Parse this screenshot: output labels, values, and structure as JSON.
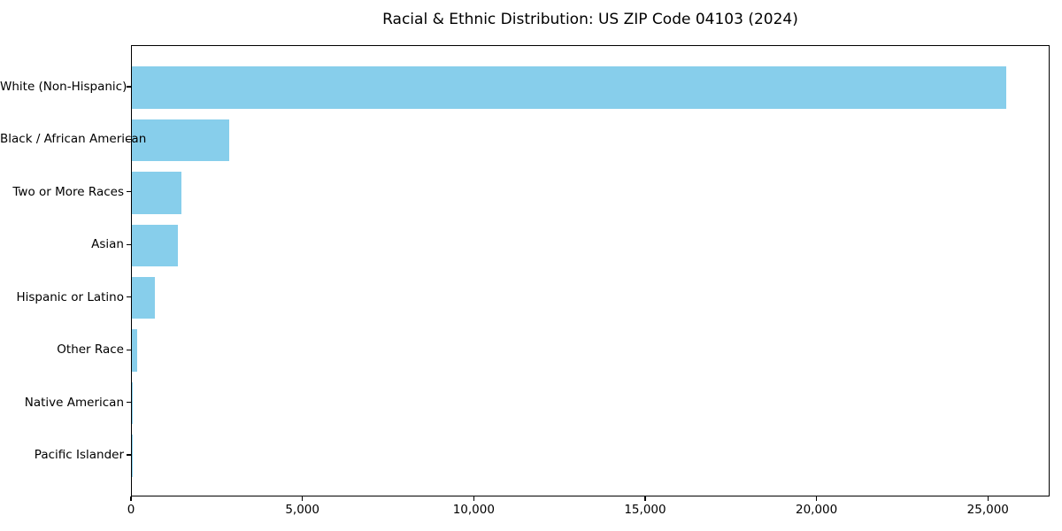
{
  "page": {
    "background": "#ffffff"
  },
  "header": {
    "title": "Racial & Ethnic Distribution: US ZIP Code 04103 (2024)"
  },
  "chart_data": {
    "type": "bar",
    "orientation": "horizontal",
    "title": "Racial & Ethnic Distribution: US ZIP Code 04103 (2024)",
    "xlabel": "",
    "ylabel": "",
    "categories": [
      "White (Non-Hispanic)",
      "Black / African American",
      "Two or More Races",
      "Asian",
      "Hispanic or Latino",
      "Other Race",
      "Native American",
      "Pacific Islander"
    ],
    "values": [
      25500,
      2850,
      1450,
      1350,
      680,
      150,
      30,
      10
    ],
    "xlim": [
      0,
      26800
    ],
    "x_ticks": [
      0,
      5000,
      10000,
      15000,
      20000,
      25000
    ],
    "x_tick_labels": [
      "0",
      "5,000",
      "10,000",
      "15,000",
      "20,000",
      "25,000"
    ],
    "bar_color": "#87CEEB",
    "spine_color": "#000000",
    "grid": false,
    "legend": false
  }
}
